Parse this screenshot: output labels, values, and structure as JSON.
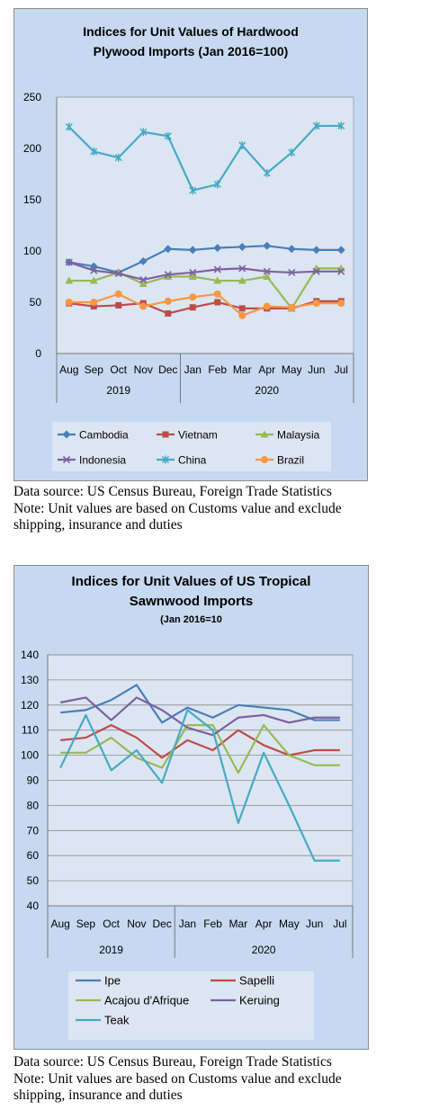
{
  "charts": [
    {
      "title_line1": "Indices for Unit Values of Hardwood",
      "title_line2": "Plywood Imports (Jan 2016=100)",
      "subtitle": "",
      "note": {
        "source": "Data source: US Census Bureau, Foreign Trade Statistics",
        "line2": "Note: Unit values are based on Customs value and exclude",
        "line3": "shipping, insurance and duties"
      }
    },
    {
      "title_line1": "Indices for Unit Values of US Tropical",
      "title_line2": "Sawnwood Imports",
      "subtitle": "(Jan 2016=10",
      "note": {
        "source": "Data source: US Census Bureau, Foreign Trade Statistics",
        "line2": "Note: Unit values are based on Customs value and exclude",
        "line3": "shipping, insurance and duties"
      }
    }
  ],
  "chart_data": [
    {
      "type": "line",
      "title": "Indices for Unit Values of Hardwood Plywood Imports (Jan 2016=100)",
      "categories": [
        "Aug",
        "Sep",
        "Oct",
        "Nov",
        "Dec",
        "Jan",
        "Feb",
        "Mar",
        "Apr",
        "May",
        "Jun",
        "Jul"
      ],
      "year_groups": [
        {
          "label": "2019",
          "span": 5
        },
        {
          "label": "2020",
          "span": 7
        }
      ],
      "ylim": [
        0,
        250
      ],
      "yticks": [
        0,
        50,
        100,
        150,
        200,
        250
      ],
      "ytick_labels": [
        "0",
        "50",
        "100",
        "150",
        "200",
        "250"
      ],
      "grid": false,
      "legend_position": "bottom",
      "series": [
        {
          "name": "Cambodia",
          "color": "#4a7ebb",
          "marker": "diamond",
          "values": [
            89,
            85,
            79,
            90,
            102,
            101,
            103,
            104,
            105,
            102,
            101,
            101
          ]
        },
        {
          "name": "Vietnam",
          "color": "#be4b48",
          "marker": "square",
          "values": [
            49,
            46,
            47,
            49,
            39,
            45,
            50,
            44,
            44,
            44,
            51,
            51
          ]
        },
        {
          "name": "Malaysia",
          "color": "#98b954",
          "marker": "triangle",
          "values": [
            71,
            71,
            79,
            68,
            75,
            75,
            71,
            71,
            75,
            44,
            83,
            83
          ]
        },
        {
          "name": "Indonesia",
          "color": "#7d60a0",
          "marker": "x",
          "values": [
            89,
            81,
            78,
            72,
            77,
            79,
            82,
            83,
            80,
            79,
            80,
            80
          ]
        },
        {
          "name": "China",
          "color": "#46aac5",
          "marker": "star",
          "values": [
            221,
            197,
            191,
            216,
            212,
            159,
            165,
            203,
            176,
            196,
            222,
            222
          ]
        },
        {
          "name": "Brazil",
          "color": "#f79646",
          "marker": "circle",
          "values": [
            50,
            50,
            58,
            46,
            51,
            55,
            58,
            37,
            46,
            45,
            49,
            49
          ]
        }
      ]
    },
    {
      "type": "line",
      "title": "Indices for Unit Values of US Tropical Sawnwood Imports (Jan 2016=10",
      "categories": [
        "Aug",
        "Sep",
        "Oct",
        "Nov",
        "Dec",
        "Jan",
        "Feb",
        "Mar",
        "Apr",
        "May",
        "Jun",
        "Jul"
      ],
      "year_groups": [
        {
          "label": "2019",
          "span": 5
        },
        {
          "label": "2020",
          "span": 7
        }
      ],
      "ylim": [
        40,
        140
      ],
      "yticks": [
        40,
        50,
        60,
        70,
        80,
        90,
        100,
        110,
        120,
        130,
        140
      ],
      "ytick_labels": [
        "40",
        "50",
        "60",
        "70",
        "80",
        "90",
        "100",
        "110",
        "120",
        "130",
        "140"
      ],
      "grid": true,
      "legend_position": "bottom",
      "series": [
        {
          "name": "Ipe",
          "color": "#4a7ebb",
          "values": [
            117,
            118,
            122,
            128,
            113,
            119,
            115,
            120,
            119,
            118,
            114,
            114
          ]
        },
        {
          "name": "Sapelli",
          "color": "#be4b48",
          "values": [
            106,
            107,
            112,
            107,
            99,
            106,
            102,
            110,
            104,
            100,
            102,
            102
          ]
        },
        {
          "name": "Acajou d'Afrique",
          "color": "#98b954",
          "values": [
            101,
            101,
            107,
            99,
            95,
            112,
            112,
            93,
            112,
            100,
            96,
            96
          ]
        },
        {
          "name": "Keruing",
          "color": "#7d60a0",
          "values": [
            121,
            123,
            114,
            123,
            118,
            111,
            108,
            115,
            116,
            113,
            115,
            115
          ]
        },
        {
          "name": "Teak",
          "color": "#46aac5",
          "values": [
            95,
            116,
            94,
            102,
            89,
            118,
            110,
            73,
            101,
            80,
            58,
            58
          ]
        }
      ]
    }
  ]
}
